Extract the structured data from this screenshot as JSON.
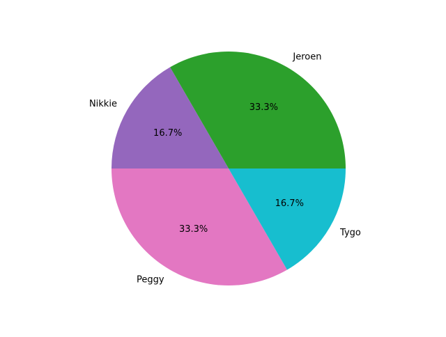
{
  "chart_data": {
    "type": "pie",
    "title": "",
    "labels": [
      "Jeroen",
      "Nikkie",
      "Peggy",
      "Tygo"
    ],
    "values": [
      2,
      1,
      2,
      1
    ],
    "percent_labels": [
      "33.3%",
      "16.7%",
      "33.3%",
      "16.7%"
    ],
    "colors": [
      "#2ca02c",
      "#9467bd",
      "#e377c2",
      "#17becf"
    ],
    "start_angle_deg": 0,
    "direction": "counterclockwise"
  }
}
